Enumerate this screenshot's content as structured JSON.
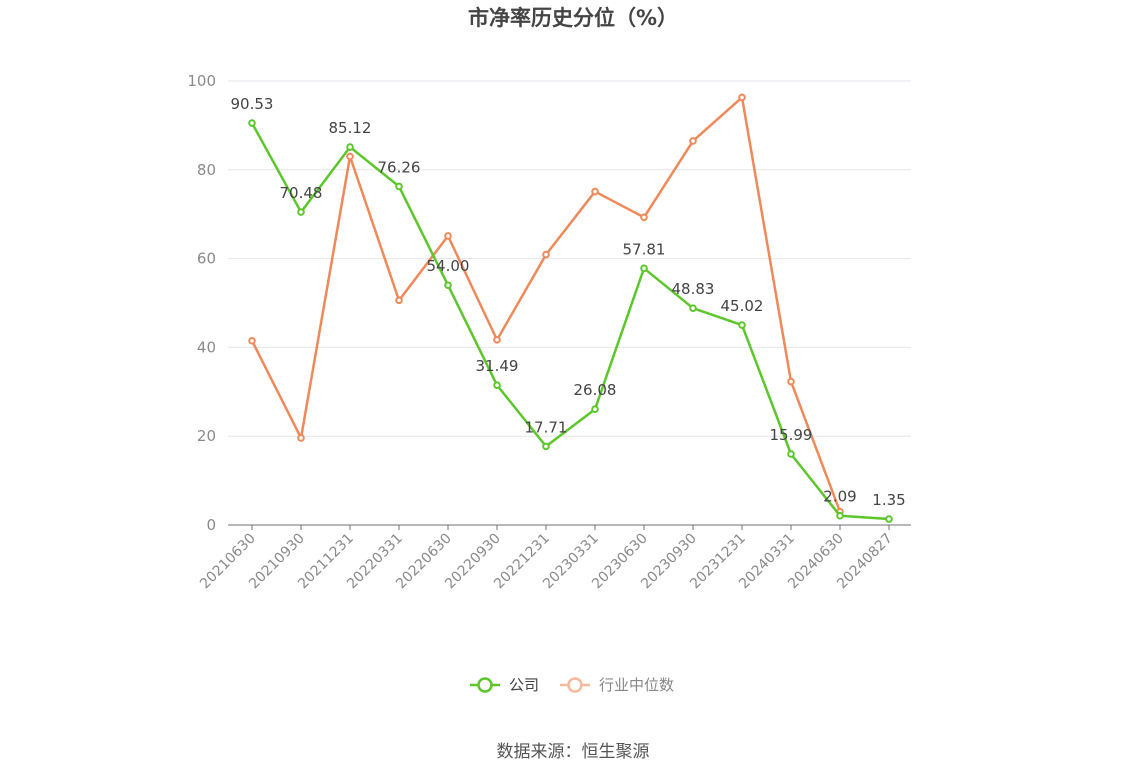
{
  "chart_data": {
    "type": "line",
    "title": "市净率历史分位（%）",
    "categories": [
      "20210630",
      "20210930",
      "20211231",
      "20220331",
      "20220630",
      "20220930",
      "20221231",
      "20230331",
      "20230630",
      "20230930",
      "20231231",
      "20240331",
      "20240630",
      "20240827"
    ],
    "series": [
      {
        "name": "公司",
        "color": "#5cc72b",
        "values": [
          90.53,
          70.48,
          85.12,
          76.26,
          54.0,
          31.49,
          17.71,
          26.08,
          57.81,
          48.83,
          45.02,
          15.99,
          2.09,
          1.35
        ],
        "labels": [
          "90.53",
          "70.48",
          "85.12",
          "76.26",
          "54.00",
          "31.49",
          "17.71",
          "26.08",
          "57.81",
          "48.83",
          "45.02",
          "15.99",
          "2.09",
          "1.35"
        ]
      },
      {
        "name": "行业中位数",
        "color": "#f0895a",
        "values": [
          41.5,
          19.6,
          83.0,
          50.6,
          65.1,
          41.7,
          60.9,
          75.1,
          69.3,
          86.5,
          96.3,
          32.3,
          3.0,
          null
        ]
      }
    ],
    "ylim": [
      0,
      100
    ],
    "yticks": [
      0,
      20,
      40,
      60,
      80,
      100
    ],
    "grid": true,
    "legend": "bottom-center"
  },
  "source": "数据来源：恒生聚源"
}
